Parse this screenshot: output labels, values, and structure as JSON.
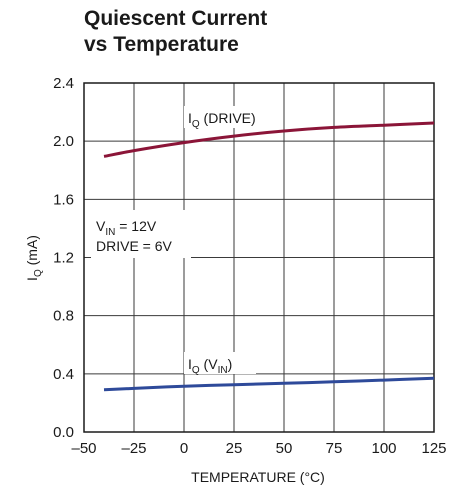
{
  "chart_data": {
    "type": "line",
    "title_lines": [
      "Quiescent Current",
      "vs Temperature"
    ],
    "xlabel": "TEMPERATURE (°C)",
    "ylabel": {
      "main": "I",
      "sub": "Q",
      "rest": " (mA)"
    },
    "xlim": [
      -50,
      125
    ],
    "ylim": [
      0,
      2.4
    ],
    "x_ticks": [
      -50,
      -25,
      0,
      25,
      50,
      75,
      100,
      125
    ],
    "x_tick_labels": [
      "–50",
      "–25",
      "0",
      "25",
      "50",
      "75",
      "100",
      "125"
    ],
    "y_ticks": [
      0,
      0.4,
      0.8,
      1.2,
      1.6,
      2.0,
      2.4
    ],
    "y_tick_labels": [
      "0.0",
      "0.4",
      "0.8",
      "1.2",
      "1.6",
      "2.0",
      "2.4"
    ],
    "grid": true,
    "series": [
      {
        "name": "IQ (DRIVE)",
        "label_main": "I",
        "label_sub": "Q",
        "label_rest": " (DRIVE)",
        "color": "#8b1538",
        "x": [
          -40,
          -25,
          0,
          25,
          50,
          75,
          100,
          125
        ],
        "values": [
          1.895,
          1.935,
          1.99,
          2.035,
          2.07,
          2.095,
          2.11,
          2.125
        ]
      },
      {
        "name": "IQ (VIN)",
        "label_main": "I",
        "label_sub": "Q",
        "label_rest_pre": " (V",
        "label_rest_sub": "IN",
        "label_rest_post": ")",
        "color": "#2e4a9a",
        "x": [
          -40,
          -25,
          0,
          25,
          50,
          75,
          100,
          125
        ],
        "values": [
          0.29,
          0.3,
          0.315,
          0.325,
          0.335,
          0.345,
          0.357,
          0.37
        ]
      }
    ],
    "annotations": {
      "line1_main": "V",
      "line1_sub": "IN",
      "line1_rest": " = 12V",
      "line2": "DRIVE = 6V"
    }
  }
}
